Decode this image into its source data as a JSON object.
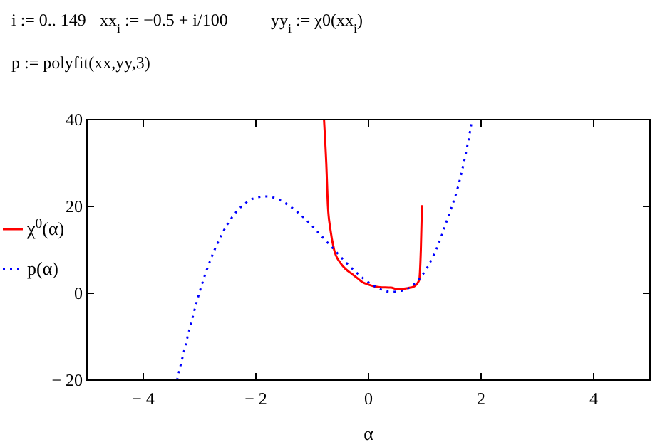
{
  "chart_data": {
    "type": "line",
    "xlabel": "α",
    "annotations": [
      "i := 0.. 149",
      "xx$_{i}$ := −0.5 + i/100",
      "yy$_{i}$ := χ0(xx$_{i}$)",
      "p := polyfit(xx,yy,3)"
    ],
    "xlim": [
      -5,
      5
    ],
    "ylim": [
      -20,
      40
    ],
    "xticks": [
      -4,
      -2,
      0,
      2,
      4
    ],
    "yticks": [
      -20,
      0,
      20,
      40
    ],
    "grid": false,
    "legend": "left",
    "marker": "none",
    "series": [
      {
        "name": "χ$^{0}$(α)",
        "color": "#ff0000",
        "line_style": "solid",
        "x": [
          -0.79,
          -0.75,
          -0.72,
          -0.68,
          -0.61,
          -0.5,
          -0.4,
          -0.3,
          -0.2,
          -0.1,
          0,
          0.1,
          0.2,
          0.4,
          0.5,
          0.6,
          0.7,
          0.8,
          0.9,
          0.93,
          0.95
        ],
        "values": [
          40,
          30,
          20,
          15,
          10,
          7,
          5.5,
          4.5,
          3.5,
          2.5,
          2,
          1.6,
          1.4,
          1.3,
          1,
          1,
          1.2,
          1.5,
          3,
          10,
          20.3
        ]
      },
      {
        "name": "p(α)",
        "color": "#0000ff",
        "line_style": "dotted",
        "x": [
          -3.4,
          -3.2,
          -3,
          -2.8,
          -2.6,
          -2.4,
          -2.2,
          -2,
          -1.8,
          -1.6,
          -1.4,
          -1.2,
          -1,
          -0.8,
          -0.6,
          -0.4,
          -0.2,
          0,
          0.2,
          0.4,
          0.6,
          0.8,
          1,
          1.2,
          1.4,
          1.6,
          1.8,
          1.84
        ],
        "values": [
          -20,
          -9.4,
          0.3,
          7.9,
          13.7,
          17.9,
          20.6,
          22,
          22.3,
          21.6,
          20.1,
          18,
          15.5,
          12.7,
          9.9,
          7.1,
          4.6,
          2.5,
          1,
          0.3,
          0.6,
          2,
          5,
          10,
          17,
          25,
          37,
          40
        ]
      }
    ]
  }
}
